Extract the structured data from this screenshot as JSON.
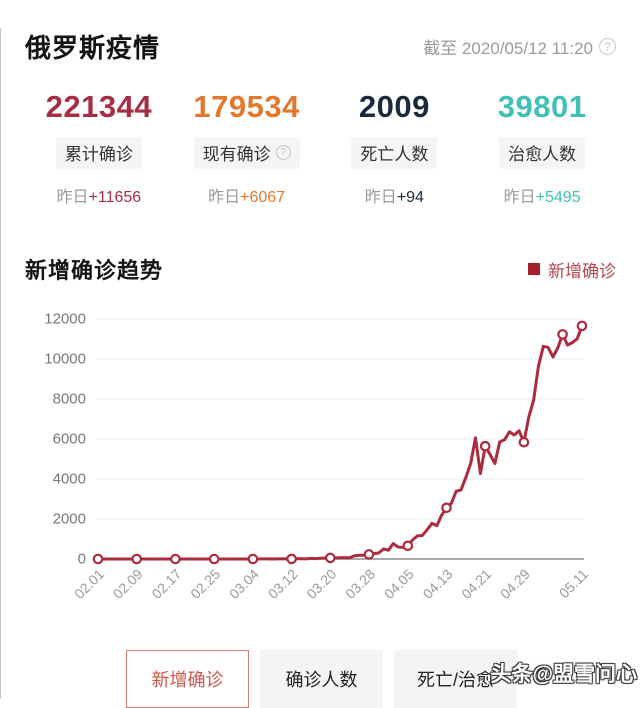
{
  "header": {
    "title": "俄罗斯疫情",
    "as_of": "截至 2020/05/12 11:20",
    "help_glyph": "?"
  },
  "stats": [
    {
      "value": "221344",
      "label": "累计确诊",
      "delta_prefix": "昨日",
      "delta": "+11656",
      "color": "#a52e44",
      "has_help": false
    },
    {
      "value": "179534",
      "label": "现有确诊",
      "delta_prefix": "昨日",
      "delta": "+6067",
      "color": "#e1782c",
      "has_help": true
    },
    {
      "value": "2009",
      "label": "死亡人数",
      "delta_prefix": "昨日",
      "delta": "+94",
      "color": "#1b2b3d",
      "has_help": false
    },
    {
      "value": "39801",
      "label": "治愈人数",
      "delta_prefix": "昨日",
      "delta": "+5495",
      "color": "#41c0b5",
      "has_help": false
    }
  ],
  "trend": {
    "title": "新增确诊趋势",
    "legend": {
      "label": "新增确诊",
      "swatch_color": "#a81f2d",
      "text_color": "#b5464d"
    }
  },
  "chart_data": {
    "type": "line",
    "title": "新增确诊趋势",
    "ylim": [
      0,
      12000
    ],
    "yticks": [
      0,
      2000,
      4000,
      6000,
      8000,
      10000,
      12000
    ],
    "grid": "horizontal",
    "legend_position": "top-right",
    "marker_style": "hollow-circle",
    "marker_interval": 8,
    "xtick_labels": [
      "02.01",
      "02.09",
      "02.17",
      "02.25",
      "03.04",
      "03.12",
      "03.20",
      "03.28",
      "04.05",
      "04.13",
      "04.21",
      "04.29",
      "05.11"
    ],
    "x": [
      "02.01",
      "02.02",
      "02.03",
      "02.04",
      "02.05",
      "02.06",
      "02.07",
      "02.08",
      "02.09",
      "02.10",
      "02.11",
      "02.12",
      "02.13",
      "02.14",
      "02.15",
      "02.16",
      "02.17",
      "02.18",
      "02.19",
      "02.20",
      "02.21",
      "02.22",
      "02.23",
      "02.24",
      "02.25",
      "02.26",
      "02.27",
      "02.28",
      "02.29",
      "03.01",
      "03.02",
      "03.03",
      "03.04",
      "03.05",
      "03.06",
      "03.07",
      "03.08",
      "03.09",
      "03.10",
      "03.11",
      "03.12",
      "03.13",
      "03.14",
      "03.15",
      "03.16",
      "03.17",
      "03.18",
      "03.19",
      "03.20",
      "03.21",
      "03.22",
      "03.23",
      "03.24",
      "03.25",
      "03.26",
      "03.27",
      "03.28",
      "03.29",
      "03.30",
      "03.31",
      "04.01",
      "04.02",
      "04.03",
      "04.04",
      "04.05",
      "04.06",
      "04.07",
      "04.08",
      "04.09",
      "04.10",
      "04.11",
      "04.12",
      "04.13",
      "04.14",
      "04.15",
      "04.16",
      "04.17",
      "04.18",
      "04.19",
      "04.20",
      "04.21",
      "04.22",
      "04.23",
      "04.24",
      "04.25",
      "04.26",
      "04.27",
      "04.28",
      "04.29",
      "04.30",
      "05.01",
      "05.02",
      "05.03",
      "05.04",
      "05.05",
      "05.06",
      "05.07",
      "05.08",
      "05.09",
      "05.10",
      "05.11"
    ],
    "series": [
      {
        "name": "新增确诊",
        "color": "#ac2b3e",
        "values": [
          0,
          0,
          0,
          0,
          0,
          0,
          0,
          0,
          0,
          0,
          0,
          0,
          0,
          0,
          0,
          0,
          0,
          0,
          0,
          0,
          0,
          0,
          0,
          0,
          0,
          0,
          0,
          0,
          0,
          0,
          1,
          0,
          0,
          1,
          6,
          3,
          0,
          3,
          3,
          8,
          6,
          11,
          14,
          4,
          30,
          21,
          33,
          52,
          54,
          53,
          61,
          71,
          57,
          163,
          182,
          196,
          228,
          270,
          302,
          501,
          440,
          771,
          601,
          582,
          658,
          954,
          1154,
          1175,
          1459,
          1786,
          1667,
          2186,
          2558,
          2774,
          3388,
          3448,
          4070,
          4785,
          6060,
          4268,
          5642,
          5236,
          4774,
          5849,
          5966,
          6361,
          6198,
          6411,
          5841,
          7099,
          7933,
          9623,
          10633,
          10581,
          10102,
          10559,
          11231,
          10699,
          10817,
          11012,
          11656
        ]
      }
    ]
  },
  "tabs": [
    {
      "label": "新增确诊",
      "active": true
    },
    {
      "label": "确诊人数",
      "active": false
    },
    {
      "label": "死亡/治愈",
      "active": false
    }
  ],
  "watermark": "头条@盟雪问心"
}
